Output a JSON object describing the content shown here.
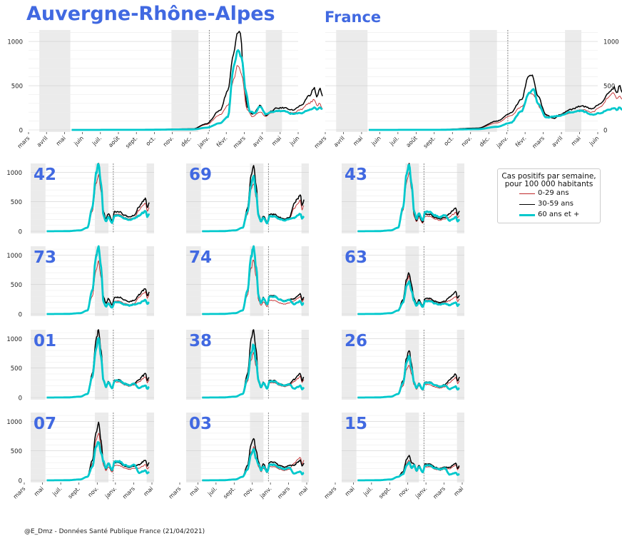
{
  "header": {
    "title": "Auvergne-Rhône-Alpes",
    "subtitle": "France"
  },
  "footer": "@E_Dmz - Données Santé Publique France (21/04/2021)",
  "legend": {
    "title_line1": "Cas positifs par semaine,",
    "title_line2": "pour 100 000 habitants",
    "items": [
      "0-29 ans",
      "30-59 ans",
      "60 ans et +"
    ]
  },
  "colors": {
    "young": "#c0282a",
    "middle": "#000000",
    "senior": "#00c8cc",
    "label": "#4169e1",
    "shade": "#ebebeb"
  },
  "chart_data": [
    {
      "type": "line",
      "title": "Auvergne-Rhône-Alpes",
      "xlabel": "",
      "ylabel": "",
      "x_ticks_top": [
        "mars",
        "avril",
        "mai",
        "juin",
        "juil.",
        "août",
        "sept.",
        "oct.",
        "nov.",
        "déc.",
        "janv.",
        "févr.",
        "mars",
        "avril",
        "mai",
        "juin"
      ],
      "y_ticks": [
        0,
        500,
        1000
      ],
      "ylim": [
        0,
        1130
      ],
      "series": [
        {
          "name": "0-29 ans",
          "keys": [
            [
              0,
              0
            ],
            [
              25,
              2
            ],
            [
              45,
              10
            ],
            [
              50,
              60
            ],
            [
              55,
              170
            ],
            [
              58,
              280
            ],
            [
              60,
              560
            ],
            [
              61.5,
              735
            ],
            [
              63,
              640
            ],
            [
              65,
              230
            ],
            [
              67,
              150
            ],
            [
              70,
              205
            ],
            [
              72,
              150
            ],
            [
              74,
              190
            ],
            [
              76,
              210
            ],
            [
              79,
              215
            ],
            [
              82,
              190
            ],
            [
              85,
              230
            ],
            [
              88,
              300
            ],
            [
              90,
              340
            ],
            [
              91,
              270
            ],
            [
              92,
              310
            ],
            [
              93,
              235
            ]
          ]
        },
        {
          "name": "30-59 ans",
          "keys": [
            [
              0,
              0
            ],
            [
              25,
              2
            ],
            [
              45,
              12
            ],
            [
              50,
              70
            ],
            [
              55,
              220
            ],
            [
              58,
              450
            ],
            [
              60,
              880
            ],
            [
              61.5,
              1120
            ],
            [
              62.5,
              1090
            ],
            [
              64,
              550
            ],
            [
              65,
              260
            ],
            [
              67,
              175
            ],
            [
              70,
              275
            ],
            [
              72,
              165
            ],
            [
              74,
              210
            ],
            [
              76,
              245
            ],
            [
              79,
              250
            ],
            [
              82,
              225
            ],
            [
              85,
              270
            ],
            [
              88,
              385
            ],
            [
              90,
              470
            ],
            [
              91,
              370
            ],
            [
              92,
              470
            ],
            [
              93,
              380
            ]
          ]
        },
        {
          "name": "60 ans et +",
          "keys": [
            [
              0,
              0
            ],
            [
              25,
              1
            ],
            [
              45,
              6
            ],
            [
              50,
              25
            ],
            [
              55,
              75
            ],
            [
              58,
              150
            ],
            [
              60,
              700
            ],
            [
              61.5,
              880
            ],
            [
              63,
              830
            ],
            [
              64.5,
              450
            ],
            [
              66,
              210
            ],
            [
              68,
              190
            ],
            [
              70,
              270
            ],
            [
              72,
              175
            ],
            [
              74,
              200
            ],
            [
              76,
              215
            ],
            [
              79,
              210
            ],
            [
              82,
              180
            ],
            [
              85,
              190
            ],
            [
              88,
              225
            ],
            [
              90,
              250
            ],
            [
              91,
              230
            ],
            [
              92,
              255
            ],
            [
              93,
              235
            ]
          ]
        }
      ]
    },
    {
      "type": "line",
      "title": "France",
      "xlabel": "",
      "ylabel": "",
      "x_ticks_top": [
        "mars",
        "avril",
        "mai",
        "juin",
        "juil.",
        "août",
        "sept.",
        "oct.",
        "nov.",
        "déc.",
        "janv.",
        "févr.",
        "mars",
        "avril",
        "mai",
        "juin"
      ],
      "y_ticks": [
        0,
        500,
        1000
      ],
      "ylim": [
        0,
        1130
      ],
      "series": [
        {
          "name": "0-29 ans",
          "keys": [
            [
              0,
              0
            ],
            [
              25,
              2
            ],
            [
              40,
              15
            ],
            [
              47,
              80
            ],
            [
              52,
              160
            ],
            [
              56,
              260
            ],
            [
              59,
              420
            ],
            [
              61,
              380
            ],
            [
              63,
              240
            ],
            [
              66,
              140
            ],
            [
              70,
              160
            ],
            [
              74,
              190
            ],
            [
              78,
              230
            ],
            [
              82,
              200
            ],
            [
              85,
              260
            ],
            [
              88,
              370
            ],
            [
              90,
              420
            ],
            [
              91,
              360
            ],
            [
              92,
              390
            ],
            [
              93,
              340
            ]
          ]
        },
        {
          "name": "30-59 ans",
          "keys": [
            [
              0,
              0
            ],
            [
              25,
              3
            ],
            [
              40,
              20
            ],
            [
              47,
              100
            ],
            [
              52,
              190
            ],
            [
              56,
              340
            ],
            [
              58.5,
              600
            ],
            [
              60,
              610
            ],
            [
              62,
              380
            ],
            [
              65,
              170
            ],
            [
              68,
              130
            ],
            [
              70,
              170
            ],
            [
              74,
              230
            ],
            [
              78,
              270
            ],
            [
              82,
              240
            ],
            [
              85,
              300
            ],
            [
              88,
              420
            ],
            [
              90,
              480
            ],
            [
              91,
              420
            ],
            [
              92,
              500
            ],
            [
              93,
              420
            ]
          ]
        },
        {
          "name": "60 ans et +",
          "keys": [
            [
              0,
              0
            ],
            [
              25,
              1
            ],
            [
              40,
              8
            ],
            [
              47,
              35
            ],
            [
              52,
              80
            ],
            [
              56,
              210
            ],
            [
              59,
              430
            ],
            [
              60.5,
              455
            ],
            [
              62,
              300
            ],
            [
              65,
              140
            ],
            [
              70,
              160
            ],
            [
              74,
              200
            ],
            [
              78,
              215
            ],
            [
              82,
              170
            ],
            [
              85,
              190
            ],
            [
              88,
              230
            ],
            [
              90,
              245
            ],
            [
              91,
              230
            ],
            [
              92,
              250
            ],
            [
              93,
              220
            ]
          ]
        }
      ]
    },
    {
      "type": "line",
      "title": "",
      "xlabel": "",
      "ylabel": "",
      "x_ticks_bottom": [
        "mars",
        "mai",
        "juil.",
        "sept.",
        "nov.",
        "janv.",
        "mars",
        "mai"
      ],
      "y_ticks": [
        0,
        500,
        1000
      ],
      "ylim": [
        0,
        1150
      ],
      "panels": [
        {
          "label": "42",
          "peak": [
            950,
            1150,
            1150
          ],
          "second": [
            260,
            300,
            240
          ],
          "end": [
            480,
            560,
            350
          ]
        },
        {
          "label": "69",
          "peak": [
            820,
            1120,
            930
          ],
          "second": [
            230,
            260,
            230
          ],
          "end": [
            520,
            620,
            300
          ]
        },
        {
          "label": "43",
          "peak": [
            1000,
            1150,
            1150
          ],
          "second": [
            230,
            260,
            300
          ],
          "end": [
            320,
            400,
            240
          ]
        },
        {
          "label": "73",
          "peak": [
            880,
            1150,
            1150
          ],
          "second": [
            200,
            260,
            180
          ],
          "end": [
            380,
            440,
            240
          ]
        },
        {
          "label": "74",
          "peak": [
            920,
            1150,
            1150
          ],
          "second": [
            210,
            280,
            270
          ],
          "end": [
            300,
            340,
            220
          ]
        },
        {
          "label": "63",
          "peak": [
            640,
            700,
            560
          ],
          "second": [
            220,
            240,
            200
          ],
          "end": [
            300,
            380,
            200
          ]
        },
        {
          "label": "01",
          "peak": [
            950,
            1150,
            990
          ],
          "second": [
            240,
            270,
            260
          ],
          "end": [
            360,
            410,
            210
          ]
        },
        {
          "label": "38",
          "peak": [
            760,
            1160,
            900
          ],
          "second": [
            230,
            260,
            250
          ],
          "end": [
            360,
            410,
            200
          ]
        },
        {
          "label": "26",
          "peak": [
            560,
            800,
            700
          ],
          "second": [
            200,
            240,
            230
          ],
          "end": [
            340,
            400,
            190
          ]
        },
        {
          "label": "07",
          "peak": [
            800,
            970,
            660
          ],
          "second": [
            230,
            270,
            290
          ],
          "end": [
            270,
            350,
            170
          ]
        },
        {
          "label": "03",
          "peak": [
            560,
            720,
            530
          ],
          "second": [
            210,
            280,
            240
          ],
          "end": [
            390,
            340,
            150
          ]
        },
        {
          "label": "15",
          "peak": [
            340,
            420,
            300
          ],
          "second": [
            210,
            250,
            230
          ],
          "end": [
            260,
            290,
            130
          ]
        }
      ]
    }
  ]
}
